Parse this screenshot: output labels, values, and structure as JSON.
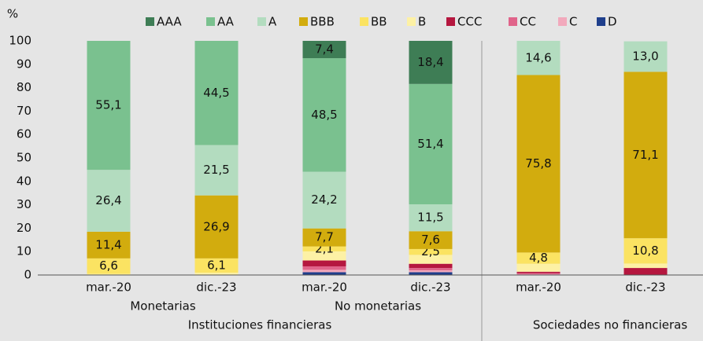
{
  "chart_data": {
    "type": "stacked_bar",
    "y_label": "%",
    "categories": [
      "mar.-20",
      "dic.-23",
      "mar.-20",
      "dic.-23",
      "mar.-20",
      "dic.-23"
    ],
    "groups": [
      "Monetarias",
      "No monetarias"
    ],
    "supergroups": [
      "Instituciones financieras",
      "Sociedades no financieras"
    ],
    "ylim": [
      0,
      100
    ],
    "yticks": [
      0,
      10,
      20,
      30,
      40,
      50,
      60,
      70,
      80,
      90,
      100
    ],
    "grid": false,
    "series": [
      {
        "name": "D",
        "color": "#1f3f8c",
        "values": [
          0,
          0,
          1.2,
          1.2,
          0,
          0
        ]
      },
      {
        "name": "C",
        "color": "#f2a9bc",
        "values": [
          0,
          0,
          1.0,
          0.8,
          0.3,
          0
        ]
      },
      {
        "name": "CC",
        "color": "#e0648a",
        "values": [
          0,
          0,
          1.5,
          1.0,
          0.5,
          0
        ]
      },
      {
        "name": "CCC",
        "color": "#b5173f",
        "values": [
          0,
          0,
          2.5,
          1.8,
          0.6,
          3.0
        ]
      },
      {
        "name": "B",
        "color": "#fdf1a5",
        "values": [
          0.5,
          1.0,
          3.9,
          3.8,
          3.4,
          1.9
        ]
      },
      {
        "name": "BB",
        "color": "#fbe362",
        "values": [
          6.6,
          6.1,
          2.1,
          2.5,
          4.8,
          10.8
        ],
        "value_labels": [
          "6,6",
          "6,1",
          "2,1",
          "2,5",
          "4,8",
          "10,8"
        ]
      },
      {
        "name": "BBB",
        "color": "#d2ac0e",
        "values": [
          11.4,
          26.9,
          7.7,
          7.6,
          75.8,
          71.1
        ],
        "value_labels": [
          "11,4",
          "26,9",
          "7,7",
          "7,6",
          "75,8",
          "71,1"
        ]
      },
      {
        "name": "A",
        "color": "#b3dcbf",
        "values": [
          26.4,
          21.5,
          24.2,
          11.5,
          14.6,
          13.0
        ],
        "value_labels": [
          "26,4",
          "21,5",
          "24,2",
          "11,5",
          "14,6",
          "13,0"
        ]
      },
      {
        "name": "AA",
        "color": "#7ac18f",
        "values": [
          55.1,
          44.5,
          48.5,
          51.4,
          0,
          0
        ],
        "value_labels": [
          "55,1",
          "44,5",
          "48,5",
          "51,4",
          null,
          null
        ]
      },
      {
        "name": "AAA",
        "color": "#3e7d55",
        "values": [
          0,
          0,
          7.4,
          18.4,
          0,
          0
        ],
        "value_labels": [
          null,
          null,
          "7,4",
          "18,4",
          null,
          null
        ]
      }
    ]
  }
}
